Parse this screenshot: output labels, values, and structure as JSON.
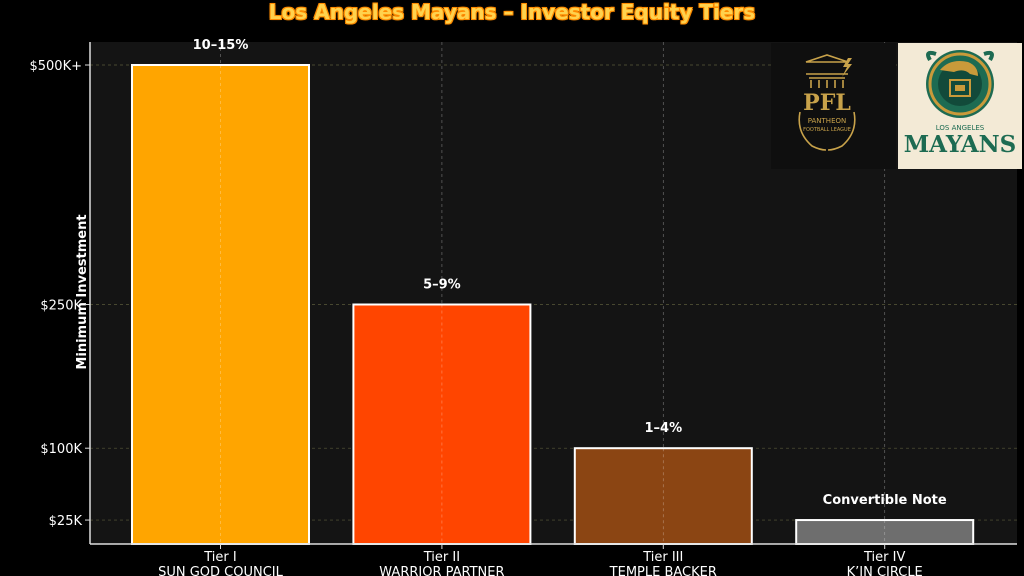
{
  "chart_data": {
    "type": "bar",
    "title": "Los Angeles Mayans – Investor Equity Tiers",
    "ylabel": "Minimum Investment",
    "xlabel": "",
    "y_ticks": [
      {
        "value": 25,
        "label": "$25K"
      },
      {
        "value": 100,
        "label": "$100K"
      },
      {
        "value": 250,
        "label": "$250K"
      },
      {
        "value": 500,
        "label": "$500K+"
      }
    ],
    "ylim": [
      0,
      524
    ],
    "grid": true,
    "categories": [
      {
        "tier": "Tier I",
        "name": "SUN GOD COUNCIL"
      },
      {
        "tier": "Tier II",
        "name": "WARRIOR PARTNER"
      },
      {
        "tier": "Tier III",
        "name": "TEMPLE BACKER"
      },
      {
        "tier": "Tier IV",
        "name": "K’IN CIRCLE"
      }
    ],
    "values": [
      500,
      250,
      100,
      25
    ],
    "value_unit": "$K",
    "bar_labels": [
      "10–15%",
      "5–9%",
      "1–4%",
      "Convertible Note"
    ],
    "colors": [
      "#ffa500",
      "#ff4500",
      "#8b4513",
      "#6e6e6e"
    ]
  },
  "logos": {
    "pfl": {
      "main": "PFL",
      "sub1": "PANTHEON",
      "sub2": "FOOTBALL LEAGUE"
    },
    "mayans": {
      "top": "LOS ANGELES",
      "main": "MAYANS"
    }
  }
}
